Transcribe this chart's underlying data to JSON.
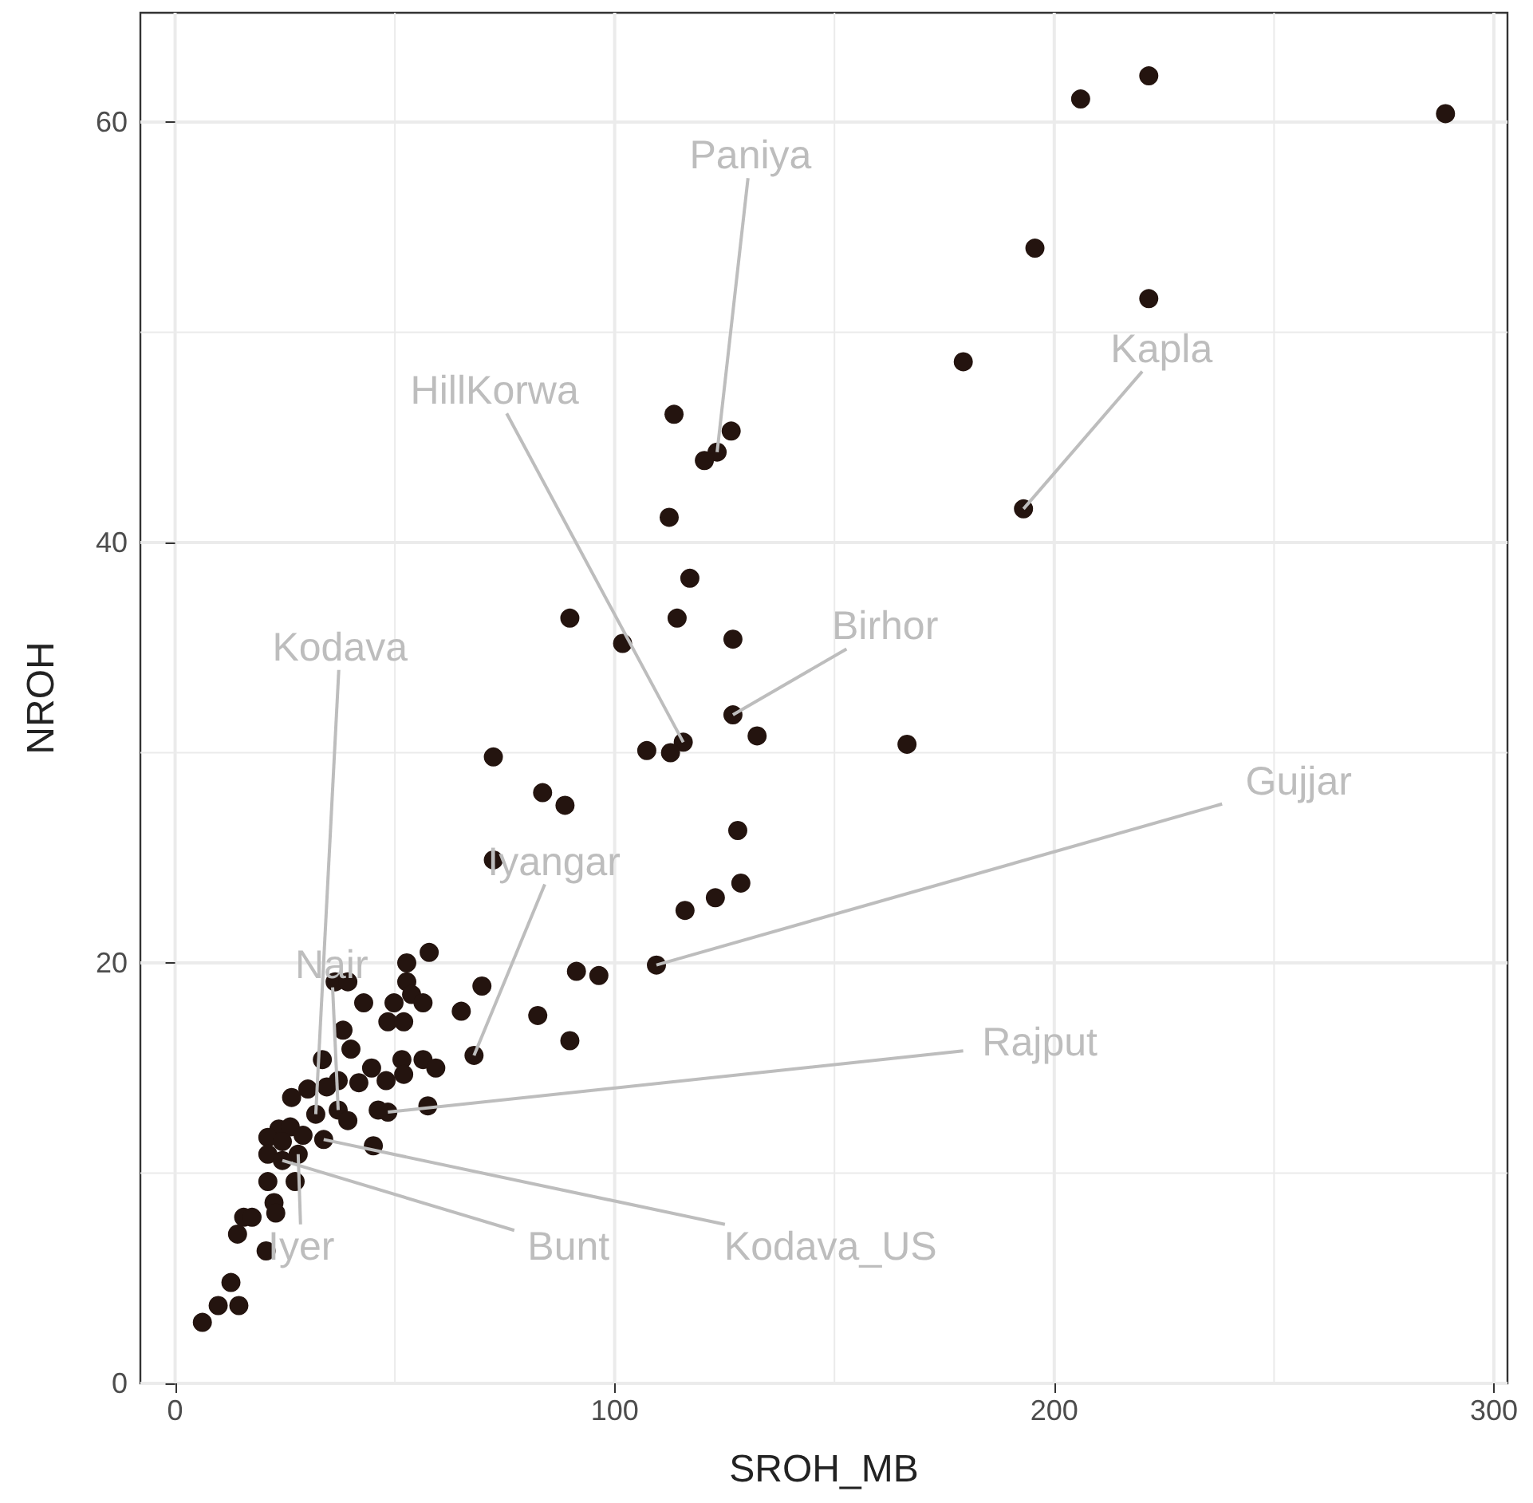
{
  "chart_data": {
    "type": "scatter",
    "xlabel": "SROH_MB",
    "ylabel": "NROH",
    "xlim": [
      -7.9,
      303.1
    ],
    "ylim": [
      0,
      65.2
    ],
    "xticks": [
      0,
      {
        "value": 50,
        "label": null
      },
      100,
      {
        "value": 150,
        "label": null
      },
      200,
      {
        "value": 250,
        "label": null
      },
      300
    ],
    "yticks": [
      0,
      {
        "value": 10,
        "label": null
      },
      20,
      {
        "value": 30,
        "label": null
      },
      40,
      {
        "value": 50,
        "label": null
      },
      60
    ],
    "grid": true,
    "marker": "circle",
    "series": [
      {
        "color": "#24140f",
        "x": [
          206,
          221.5,
          289,
          195.6,
          221.5,
          179.3,
          193,
          113.5,
          126.5,
          123.3,
          120.4,
          112.4,
          117.1,
          89.8,
          114.2,
          101.8,
          126.9,
          126.9,
          132.4,
          115.6,
          112.7,
          107.3,
          166.5,
          72.4,
          83.6,
          88.7,
          128,
          72.4,
          128.7,
          122.9,
          116,
          109.5,
          91.3,
          96.4,
          82.5,
          89.8,
          68,
          69.8,
          65.1,
          57.8,
          52.7,
          52.7,
          57.5,
          48.4,
          46.2,
          45.1,
          36.4,
          39.3,
          42.9,
          49.8,
          53.8,
          56.4,
          48.4,
          52,
          38.2,
          40,
          33.5,
          44.7,
          51.6,
          52,
          56.4,
          59.3,
          41.8,
          48,
          37.1,
          34.5,
          30.2,
          26.5,
          32,
          37.1,
          39.3,
          23.6,
          26.2,
          21.1,
          24.4,
          29.1,
          33.8,
          21.1,
          24.4,
          28,
          21.1,
          27.3,
          22.5,
          22.9,
          15.6,
          17.5,
          14.2,
          20.7,
          12.7,
          9.8,
          14.5,
          6.2
        ],
        "values": [
          61.1,
          62.2,
          60.4,
          54.0,
          51.6,
          48.6,
          41.6,
          46.1,
          45.3,
          44.3,
          43.9,
          41.2,
          38.3,
          36.4,
          36.4,
          35.2,
          35.4,
          31.8,
          30.8,
          30.5,
          30.0,
          30.1,
          30.4,
          29.8,
          28.1,
          27.5,
          26.3,
          24.9,
          23.8,
          23.1,
          22.5,
          19.9,
          19.6,
          19.4,
          17.5,
          16.3,
          15.6,
          18.9,
          17.7,
          20.5,
          20.0,
          19.1,
          13.2,
          12.9,
          13.0,
          11.3,
          19.1,
          19.1,
          18.1,
          18.1,
          18.5,
          18.1,
          17.2,
          17.2,
          16.8,
          15.9,
          15.4,
          15.0,
          15.4,
          14.7,
          15.4,
          15.0,
          14.3,
          14.4,
          14.4,
          14.1,
          14.0,
          13.6,
          12.8,
          13.0,
          12.5,
          12.1,
          12.2,
          11.7,
          11.5,
          11.8,
          11.6,
          10.9,
          10.6,
          10.9,
          9.6,
          9.6,
          8.6,
          8.1,
          7.9,
          7.9,
          7.1,
          6.3,
          4.8,
          3.7,
          3.7,
          2.9
        ]
      }
    ],
    "annotations": [
      {
        "text": "Paniya",
        "x": 123.3,
        "y": 44.3
      },
      {
        "text": "Kapla",
        "x": 193,
        "y": 41.6
      },
      {
        "text": "HillKorwa",
        "x": 115.6,
        "y": 30.5
      },
      {
        "text": "Birhor",
        "x": 126.9,
        "y": 31.8
      },
      {
        "text": "Kodava",
        "x": 32,
        "y": 12.8
      },
      {
        "text": "Nair",
        "x": 37.1,
        "y": 13.0
      },
      {
        "text": "Iyangar",
        "x": 68,
        "y": 15.6
      },
      {
        "text": "Gujjar",
        "x": 109.5,
        "y": 19.9
      },
      {
        "text": "Rajput",
        "x": 48.4,
        "y": 12.9
      },
      {
        "text": "Bunt",
        "x": 24.4,
        "y": 10.6
      },
      {
        "text": "Kodava_US",
        "x": 33.8,
        "y": 11.6
      },
      {
        "text": "Iyer",
        "x": 28,
        "y": 10.9
      }
    ]
  }
}
